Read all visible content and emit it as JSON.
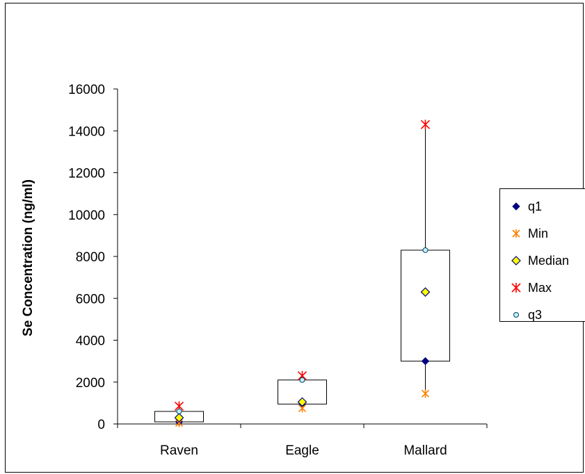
{
  "chart_data": {
    "type": "box",
    "ylabel": "Se Concentration (ng/ml)",
    "xlabel": "",
    "ylim": [
      0,
      16000
    ],
    "yticks": [
      0,
      2000,
      4000,
      6000,
      8000,
      10000,
      12000,
      14000,
      16000
    ],
    "categories": [
      "Raven",
      "Eagle",
      "Mallard"
    ],
    "series": [
      {
        "name": "q1",
        "values": [
          100,
          950,
          3000
        ],
        "marker": "diamond",
        "color": "#00007f"
      },
      {
        "name": "Min",
        "values": [
          50,
          750,
          1450
        ],
        "marker": "star",
        "color": "#ff8000"
      },
      {
        "name": "Median",
        "values": [
          300,
          1050,
          6300
        ],
        "marker": "diamond-open",
        "color": "#ffff00"
      },
      {
        "name": "Max",
        "values": [
          850,
          2300,
          14300
        ],
        "marker": "asterisk",
        "color": "#ff0000"
      },
      {
        "name": "q3",
        "values": [
          600,
          2100,
          8300
        ],
        "marker": "circle",
        "color": "#c0f0ff"
      }
    ],
    "legend_position": "right",
    "grid": false
  }
}
